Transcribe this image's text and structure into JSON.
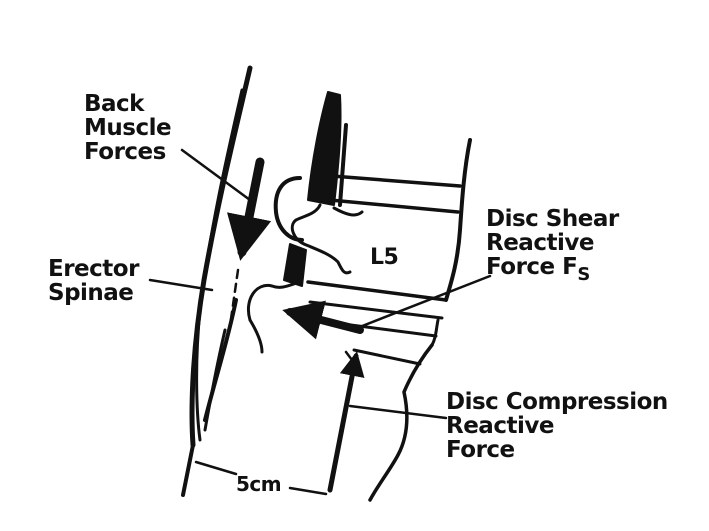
{
  "labels": {
    "back_muscle": [
      "Back",
      "Muscle",
      "Forces"
    ],
    "erector": [
      "Erector",
      "Spinae"
    ],
    "disc_shear": [
      "Disc Shear",
      "Reactive",
      "Force F"
    ],
    "disc_shear_subscript": "S",
    "disc_compression": [
      "Disc Compression",
      "Reactive",
      "Force"
    ],
    "vertebra": "L5",
    "distance": "5cm"
  },
  "colors": {
    "ink": "#111111",
    "background": "#ffffff"
  }
}
